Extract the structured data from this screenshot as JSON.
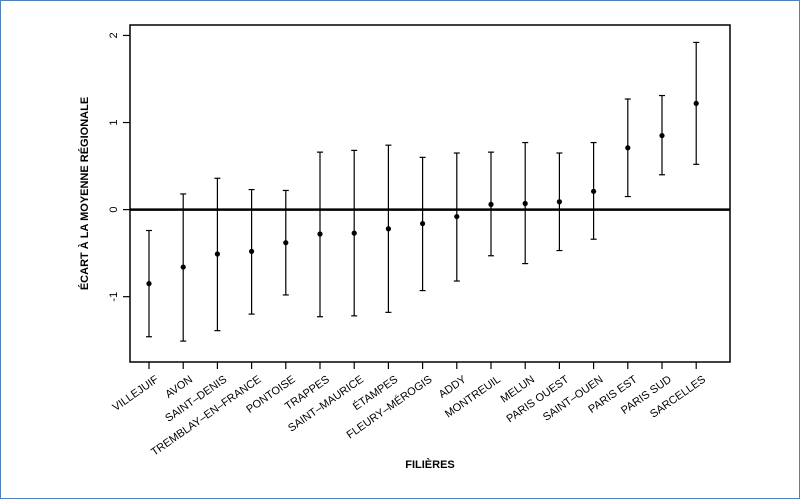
{
  "chart_data": {
    "type": "scatter",
    "title": "",
    "xlabel": "FILIÈRES",
    "ylabel": "ÉCART À LA MOYENNE RÉGIONALE",
    "ylim": [
      -1.75,
      2.12
    ],
    "yticks": [
      -1,
      0,
      1,
      2
    ],
    "reference_line": 0,
    "grid": false,
    "legend": "none",
    "categories": [
      "VILLEJUIF",
      "AVON",
      "SAINT–DENIS",
      "TREMBLAY–EN–FRANCE",
      "PONTOISE",
      "TRAPPES",
      "SAINT–MAURICE",
      "ÉTAMPES",
      "FLEURY–MÉROGIS",
      "ADDY",
      "MONTREUIL",
      "MELUN",
      "PARIS OUEST",
      "SAINT–OUEN",
      "PARIS EST",
      "PARIS SUD",
      "SARCELLES"
    ],
    "series": [
      {
        "values": [
          -0.85,
          -0.66,
          -0.51,
          -0.48,
          -0.38,
          -0.28,
          -0.27,
          -0.22,
          -0.16,
          -0.08,
          0.06,
          0.07,
          0.09,
          0.21,
          0.71,
          0.85,
          1.22
        ],
        "lower": [
          -1.46,
          -1.51,
          -1.39,
          -1.2,
          -0.98,
          -1.23,
          -1.22,
          -1.18,
          -0.93,
          -0.82,
          -0.53,
          -0.62,
          -0.47,
          -0.34,
          0.15,
          0.4,
          0.52
        ],
        "upper": [
          -0.24,
          0.18,
          0.36,
          0.23,
          0.22,
          0.66,
          0.68,
          0.74,
          0.6,
          0.65,
          0.66,
          0.77,
          0.65,
          0.77,
          1.27,
          1.31,
          1.92
        ]
      }
    ],
    "colors": {
      "line": "#000000",
      "frame_border": "#4f81bd"
    }
  }
}
